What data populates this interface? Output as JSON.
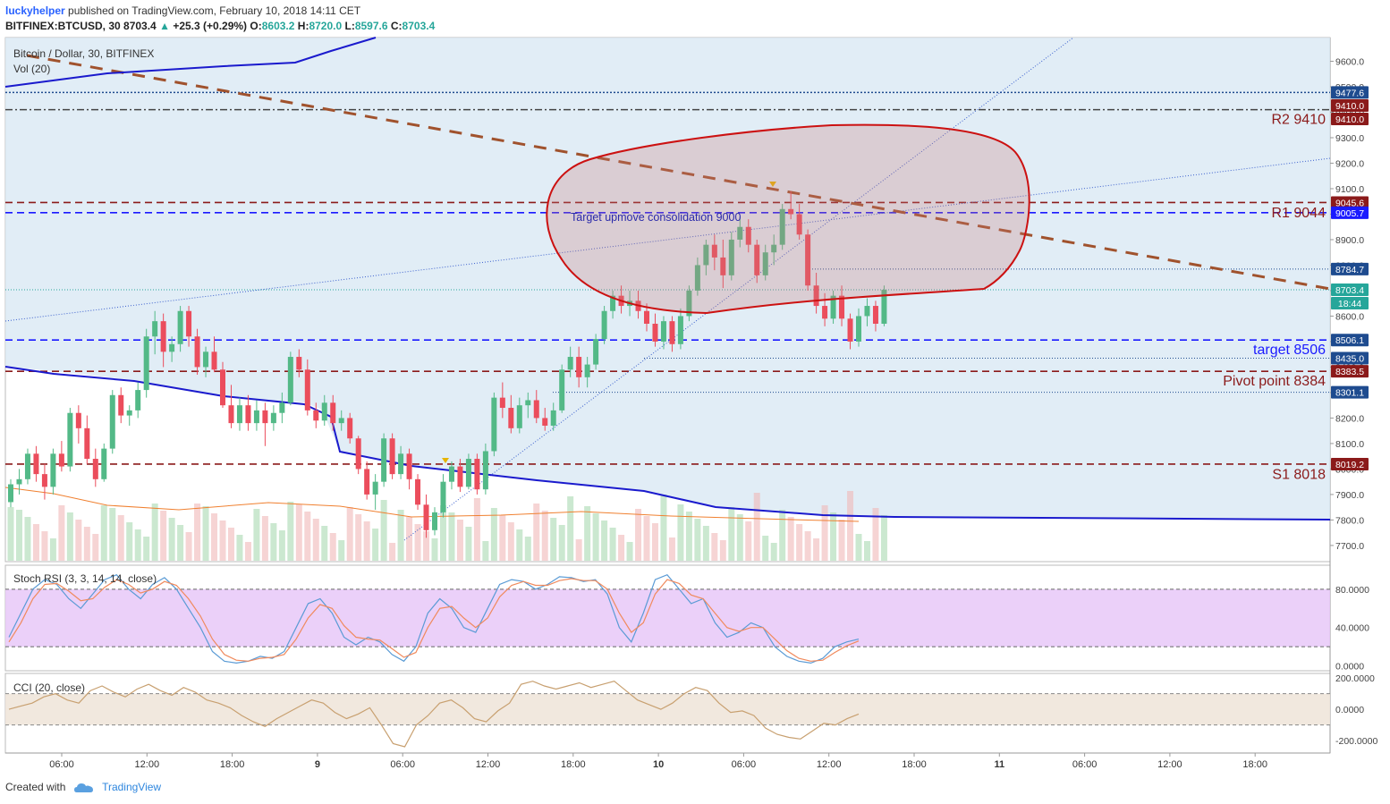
{
  "header": {
    "user": "luckyhelper",
    "published": "published on TradingView.com, February 10, 2018 14:11 CET",
    "symbol": "BITFINEX:BTCUSD, 30",
    "last": "8703.4",
    "change": "+25.3 (+0.29%)",
    "o_label": "O:",
    "o": "8603.2",
    "h_label": "H:",
    "h": "8720.0",
    "l_label": "L:",
    "l": "8597.6",
    "c_label": "C:",
    "c": "8703.4"
  },
  "footer": {
    "created": "Created with",
    "brand": "TradingView"
  },
  "chart_data": [
    {
      "type": "candlestick",
      "title": "Bitcoin / Dollar, 30, BITFINEX",
      "legend": [
        "Vol (20)"
      ],
      "ylim": [
        7640,
        9700
      ],
      "yticks": [
        "9600.0",
        "9500.0",
        "9400.0",
        "9300.0",
        "9200.0",
        "9100.0",
        "9000.0",
        "8900.0",
        "8800.0",
        "8700.0",
        "8600.0",
        "8500.0",
        "8400.0",
        "8300.0",
        "8200.0",
        "8100.0",
        "8000.0",
        "7900.0",
        "7800.0",
        "7700.0"
      ],
      "xticks": [
        "06:00",
        "12:00",
        "18:00",
        "9",
        "06:00",
        "12:00",
        "18:00",
        "10",
        "06:00",
        "12:00",
        "18:00",
        "11",
        "06:00",
        "12:00",
        "18:00"
      ],
      "price_tags": [
        {
          "label": "9477.6",
          "value": 9477.6,
          "color": "#1e4b8f"
        },
        {
          "label": "9410.0",
          "value": 9410.0,
          "color": "#8b1a1a"
        },
        {
          "label": "9410.0",
          "value": 9410.0,
          "color": "#8b1a1a"
        },
        {
          "label": "9045.6",
          "value": 9045.6,
          "color": "#8b1a1a"
        },
        {
          "label": "9005.7",
          "value": 9005.7,
          "color": "#1a1aff"
        },
        {
          "label": "8784.7",
          "value": 8784.7,
          "color": "#1e4b8f"
        },
        {
          "label": "8703.4",
          "value": 8703.4,
          "color": "#26a69a"
        },
        {
          "label": "18:44",
          "value": 8640,
          "color": "#26a69a"
        },
        {
          "label": "8506.1",
          "value": 8506.1,
          "color": "#1e4b8f"
        },
        {
          "label": "8435.0",
          "value": 8435.0,
          "color": "#1e4b8f"
        },
        {
          "label": "8383.5",
          "value": 8383.5,
          "color": "#8b1a1a"
        },
        {
          "label": "8301.1",
          "value": 8301.1,
          "color": "#1e4b8f"
        },
        {
          "label": "8019.2",
          "value": 8019.2,
          "color": "#8b1a1a"
        }
      ],
      "levels": [
        {
          "label": "R2 9410",
          "value": 9410,
          "color": "#8b1a1a"
        },
        {
          "label": "R1 9044",
          "value": 9044,
          "color": "#8b1a1a"
        },
        {
          "label": "target 8506",
          "value": 8506,
          "color": "#1a1aff"
        },
        {
          "label": "Pivot point 8384",
          "value": 8384,
          "color": "#8b1a1a"
        },
        {
          "label": "S1 8018",
          "value": 8018,
          "color": "#8b1a1a"
        }
      ],
      "annotation": "Target upmove consolidation 9000",
      "candles_ohlc": [
        [
          7870,
          7960,
          7850,
          7940
        ],
        [
          7940,
          8000,
          7900,
          7960
        ],
        [
          7960,
          8080,
          7940,
          8060
        ],
        [
          8060,
          8090,
          7950,
          7980
        ],
        [
          7980,
          8020,
          7880,
          7930
        ],
        [
          7930,
          8080,
          7900,
          8060
        ],
        [
          8060,
          8110,
          7990,
          8010
        ],
        [
          8010,
          8240,
          7990,
          8220
        ],
        [
          8220,
          8250,
          8100,
          8160
        ],
        [
          8160,
          8210,
          8020,
          8040
        ],
        [
          8040,
          8080,
          7930,
          7960
        ],
        [
          7960,
          8100,
          7950,
          8080
        ],
        [
          8080,
          8310,
          8060,
          8290
        ],
        [
          8290,
          8320,
          8180,
          8210
        ],
        [
          8210,
          8250,
          8170,
          8230
        ],
        [
          8230,
          8340,
          8200,
          8310
        ],
        [
          8310,
          8550,
          8280,
          8520
        ],
        [
          8520,
          8620,
          8450,
          8580
        ],
        [
          8580,
          8610,
          8400,
          8460
        ],
        [
          8460,
          8520,
          8420,
          8490
        ],
        [
          8490,
          8640,
          8460,
          8620
        ],
        [
          8620,
          8640,
          8480,
          8520
        ],
        [
          8520,
          8550,
          8370,
          8400
        ],
        [
          8400,
          8480,
          8360,
          8460
        ],
        [
          8460,
          8520,
          8380,
          8390
        ],
        [
          8390,
          8420,
          8240,
          8250
        ],
        [
          8250,
          8330,
          8160,
          8180
        ],
        [
          8180,
          8280,
          8150,
          8250
        ],
        [
          8250,
          8290,
          8150,
          8180
        ],
        [
          8180,
          8270,
          8150,
          8230
        ],
        [
          8230,
          8260,
          8090,
          8180
        ],
        [
          8180,
          8250,
          8150,
          8220
        ],
        [
          8220,
          8300,
          8180,
          8260
        ],
        [
          8260,
          8460,
          8250,
          8440
        ],
        [
          8440,
          8470,
          8360,
          8390
        ],
        [
          8390,
          8430,
          8210,
          8230
        ],
        [
          8230,
          8260,
          8160,
          8190
        ],
        [
          8190,
          8290,
          8170,
          8260
        ],
        [
          8260,
          8290,
          8150,
          8180
        ],
        [
          8180,
          8230,
          8150,
          8200
        ],
        [
          8200,
          8220,
          8100,
          8120
        ],
        [
          8120,
          8130,
          7980,
          8000
        ],
        [
          8000,
          8030,
          7880,
          7900
        ],
        [
          7900,
          7980,
          7840,
          7950
        ],
        [
          7950,
          8140,
          7930,
          8120
        ],
        [
          8120,
          8140,
          7960,
          7980
        ],
        [
          7980,
          8090,
          7960,
          8060
        ],
        [
          8060,
          8080,
          7920,
          7960
        ],
        [
          7960,
          7980,
          7840,
          7860
        ],
        [
          7860,
          7900,
          7730,
          7760
        ],
        [
          7760,
          7850,
          7740,
          7830
        ],
        [
          7830,
          7980,
          7810,
          7950
        ],
        [
          7950,
          8030,
          7920,
          8010
        ],
        [
          8010,
          8040,
          7910,
          7930
        ],
        [
          7930,
          8060,
          7920,
          8040
        ],
        [
          8040,
          8060,
          7900,
          7920
        ],
        [
          7920,
          8100,
          7900,
          8070
        ],
        [
          8070,
          8300,
          8050,
          8280
        ],
        [
          8280,
          8340,
          8200,
          8240
        ],
        [
          8240,
          8290,
          8140,
          8160
        ],
        [
          8160,
          8280,
          8140,
          8250
        ],
        [
          8250,
          8300,
          8200,
          8270
        ],
        [
          8270,
          8310,
          8180,
          8200
        ],
        [
          8200,
          8240,
          8150,
          8170
        ],
        [
          8170,
          8260,
          8150,
          8230
        ],
        [
          8230,
          8410,
          8220,
          8390
        ],
        [
          8390,
          8480,
          8360,
          8440
        ],
        [
          8440,
          8480,
          8320,
          8360
        ],
        [
          8360,
          8440,
          8320,
          8410
        ],
        [
          8410,
          8530,
          8390,
          8510
        ],
        [
          8510,
          8640,
          8490,
          8620
        ],
        [
          8620,
          8700,
          8590,
          8680
        ],
        [
          8680,
          8720,
          8610,
          8640
        ],
        [
          8640,
          8700,
          8600,
          8660
        ],
        [
          8660,
          8700,
          8590,
          8620
        ],
        [
          8620,
          8650,
          8540,
          8570
        ],
        [
          8570,
          8610,
          8480,
          8500
        ],
        [
          8500,
          8600,
          8470,
          8580
        ],
        [
          8580,
          8600,
          8460,
          8490
        ],
        [
          8490,
          8630,
          8470,
          8600
        ],
        [
          8600,
          8720,
          8580,
          8700
        ],
        [
          8700,
          8830,
          8680,
          8800
        ],
        [
          8800,
          8900,
          8760,
          8880
        ],
        [
          8880,
          8920,
          8780,
          8830
        ],
        [
          8830,
          8900,
          8710,
          8760
        ],
        [
          8760,
          8930,
          8740,
          8900
        ],
        [
          8900,
          8990,
          8870,
          8950
        ],
        [
          8950,
          8980,
          8850,
          8880
        ],
        [
          8880,
          8900,
          8730,
          8760
        ],
        [
          8760,
          8880,
          8740,
          8850
        ],
        [
          8850,
          8920,
          8800,
          8880
        ],
        [
          8880,
          9040,
          8860,
          9020
        ],
        [
          9020,
          9090,
          8980,
          9000
        ],
        [
          9000,
          9040,
          8900,
          8920
        ],
        [
          8920,
          8940,
          8700,
          8720
        ],
        [
          8720,
          8770,
          8610,
          8640
        ],
        [
          8640,
          8690,
          8560,
          8590
        ],
        [
          8590,
          8700,
          8570,
          8680
        ],
        [
          8680,
          8720,
          8560,
          8590
        ],
        [
          8590,
          8610,
          8470,
          8500
        ],
        [
          8500,
          8630,
          8480,
          8600
        ],
        [
          8600,
          8670,
          8560,
          8640
        ],
        [
          8640,
          8660,
          8540,
          8570
        ],
        [
          8570,
          8720,
          8560,
          8703
        ]
      ]
    },
    {
      "type": "line",
      "title": "Stoch RSI (3, 3, 14, 14, close)",
      "ylim": [
        -5,
        105
      ],
      "yticks": [
        "80.0000",
        "40.0000",
        "0.0000"
      ],
      "bands": [
        20,
        80
      ],
      "series": [
        {
          "values": [
            30,
            55,
            80,
            90,
            85,
            70,
            60,
            75,
            90,
            95,
            80,
            70,
            85,
            92,
            80,
            60,
            40,
            15,
            5,
            3,
            5,
            10,
            8,
            15,
            40,
            65,
            70,
            55,
            30,
            22,
            30,
            25,
            12,
            5,
            20,
            55,
            70,
            60,
            40,
            35,
            60,
            85,
            90,
            88,
            80,
            85,
            93,
            92,
            88,
            90,
            75,
            40,
            25,
            55,
            90,
            95,
            80,
            65,
            70,
            45,
            30,
            35,
            45,
            40,
            20,
            10,
            5,
            3,
            8,
            20,
            25,
            28
          ]
        },
        {
          "values": [
            25,
            45,
            70,
            85,
            86,
            78,
            68,
            70,
            82,
            90,
            85,
            76,
            80,
            88,
            84,
            70,
            52,
            28,
            12,
            6,
            5,
            8,
            9,
            12,
            28,
            50,
            64,
            60,
            42,
            30,
            28,
            27,
            18,
            9,
            14,
            40,
            60,
            62,
            50,
            40,
            50,
            72,
            84,
            88,
            84,
            84,
            89,
            91,
            89,
            89,
            80,
            55,
            35,
            45,
            75,
            90,
            86,
            74,
            70,
            55,
            40,
            36,
            40,
            40,
            28,
            16,
            8,
            5,
            6,
            14,
            21,
            26
          ]
        }
      ]
    },
    {
      "type": "line",
      "title": "CCI (20, close)",
      "ylim": [
        -280,
        230
      ],
      "yticks": [
        "200.0000",
        "0.0000",
        "-200.0000"
      ],
      "bands": [
        -100,
        100
      ],
      "series": [
        {
          "values": [
            0,
            20,
            40,
            80,
            100,
            60,
            40,
            120,
            150,
            110,
            80,
            130,
            160,
            120,
            90,
            140,
            110,
            60,
            40,
            10,
            -40,
            -80,
            -110,
            -60,
            -20,
            20,
            60,
            40,
            -20,
            -60,
            -30,
            10,
            -100,
            -220,
            -240,
            -100,
            -40,
            40,
            60,
            10,
            -60,
            -80,
            -10,
            40,
            160,
            180,
            150,
            130,
            150,
            170,
            140,
            160,
            180,
            120,
            60,
            30,
            0,
            40,
            100,
            140,
            120,
            40,
            -20,
            -10,
            -40,
            -120,
            -160,
            -180,
            -190,
            -140,
            -90,
            -100,
            -60,
            -30
          ]
        }
      ]
    }
  ]
}
